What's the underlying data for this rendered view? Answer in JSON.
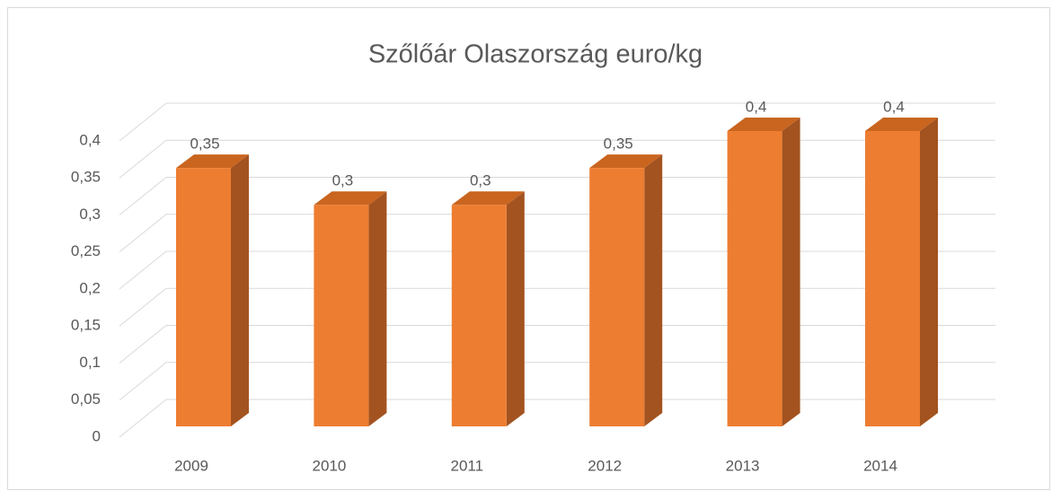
{
  "chart_data": {
    "type": "bar3d",
    "title": "Szőlőár Olaszország euro/kg",
    "categories": [
      "2009",
      "2010",
      "2011",
      "2012",
      "2013",
      "2014"
    ],
    "values": [
      0.35,
      0.3,
      0.3,
      0.35,
      0.4,
      0.4
    ],
    "value_labels": [
      "0,35",
      "0,3",
      "0,3",
      "0,35",
      "0,4",
      "0,4"
    ],
    "color": "#ed7d31",
    "ylim": [
      0,
      0.4
    ],
    "yticks": [
      0,
      {
        "value": 0.05,
        "label": "0,05"
      },
      {
        "value": 0.1,
        "label": "0,1"
      },
      {
        "value": 0.15,
        "label": "0,15"
      },
      {
        "value": 0.2,
        "label": "0,2"
      },
      {
        "value": 0.25,
        "label": "0,25"
      },
      {
        "value": 0.3,
        "label": "0,3"
      },
      {
        "value": 0.35,
        "label": "0,35"
      },
      {
        "value": 0.4,
        "label": "0,4"
      }
    ],
    "grid": true
  }
}
